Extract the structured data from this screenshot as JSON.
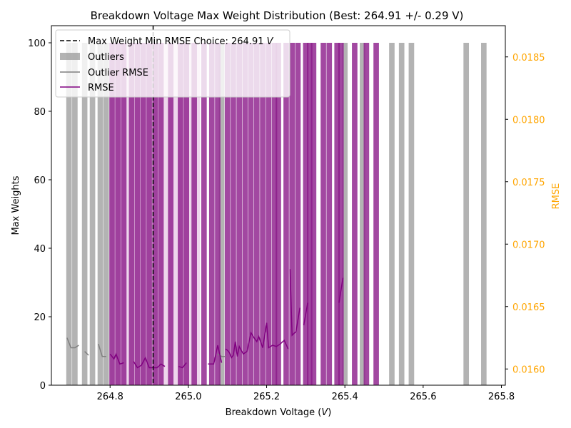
{
  "chart_data": {
    "type": "bar",
    "title": "Breakdown Voltage Max Weight Distribution (Best: 264.91 +/- 0.29 V)",
    "xlabel": "Breakdown Voltage (",
    "xlabel_unit": "V",
    "xlabel_close": ")",
    "ylabel": "Max Weights",
    "ylabel_right": "RMSE",
    "xlim": [
      264.65,
      265.81
    ],
    "ylim": [
      0,
      105
    ],
    "ylim_right": [
      0.01587,
      0.01875
    ],
    "x_ticks": [
      264.8,
      265.0,
      265.2,
      265.4,
      265.6,
      265.8
    ],
    "x_tick_labels": [
      "264.8",
      "265.0",
      "265.2",
      "265.4",
      "265.6",
      "265.8"
    ],
    "y_ticks": [
      0,
      20,
      40,
      60,
      80,
      100
    ],
    "y_tick_labels": [
      "0",
      "20",
      "40",
      "60",
      "80",
      "100"
    ],
    "y_ticks_right": [
      0.016,
      0.0165,
      0.017,
      0.0175,
      0.018,
      0.0185
    ],
    "y_tick_labels_right": [
      "0.0160",
      "0.0165",
      "0.0170",
      "0.0175",
      "0.0180",
      "0.0185"
    ],
    "colors": {
      "outlier_bar": "#999999",
      "rmse_bar": "#8b1a89",
      "outlier_line": "#7f7f7f",
      "rmse_line": "#800080",
      "best_line": "#000000",
      "best_span": "#e8c8e6",
      "right_axis": "#ffa500"
    },
    "best_choice": {
      "x": 264.91,
      "span": [
        264.8,
        265.03
      ],
      "label_prefix": "Max Weight Min RMSE Choice: 264.91 ",
      "label_unit": "V"
    },
    "legend": {
      "position": "upper-left",
      "entries": [
        "Max Weight Min RMSE Choice: 264.91 V",
        "Outliers",
        "Outlier RMSE",
        "RMSE"
      ]
    },
    "bar_width": 0.014,
    "outlier_bars": [
      {
        "x": 264.695,
        "value": 100
      },
      {
        "x": 264.71,
        "value": 100
      },
      {
        "x": 264.735,
        "value": 100
      },
      {
        "x": 264.755,
        "value": 100
      },
      {
        "x": 264.775,
        "value": 100
      },
      {
        "x": 264.79,
        "value": 100
      },
      {
        "x": 265.085,
        "value": 100
      },
      {
        "x": 265.4,
        "value": 100
      },
      {
        "x": 265.445,
        "value": 100
      },
      {
        "x": 265.52,
        "value": 100
      },
      {
        "x": 265.545,
        "value": 100
      },
      {
        "x": 265.57,
        "value": 100
      },
      {
        "x": 265.71,
        "value": 100
      },
      {
        "x": 265.755,
        "value": 100
      }
    ],
    "rmse_bars": [
      {
        "x": 264.805,
        "value": 100
      },
      {
        "x": 264.82,
        "value": 100
      },
      {
        "x": 264.835,
        "value": 100
      },
      {
        "x": 264.855,
        "value": 100
      },
      {
        "x": 264.87,
        "value": 100
      },
      {
        "x": 264.885,
        "value": 100
      },
      {
        "x": 264.9,
        "value": 100
      },
      {
        "x": 264.915,
        "value": 100
      },
      {
        "x": 264.93,
        "value": 100
      },
      {
        "x": 264.955,
        "value": 100
      },
      {
        "x": 264.98,
        "value": 100
      },
      {
        "x": 264.995,
        "value": 100
      },
      {
        "x": 265.015,
        "value": 100
      },
      {
        "x": 265.04,
        "value": 100
      },
      {
        "x": 265.06,
        "value": 100
      },
      {
        "x": 265.075,
        "value": 100
      },
      {
        "x": 265.1,
        "value": 100
      },
      {
        "x": 265.115,
        "value": 100
      },
      {
        "x": 265.13,
        "value": 100
      },
      {
        "x": 265.145,
        "value": 100
      },
      {
        "x": 265.16,
        "value": 100
      },
      {
        "x": 265.175,
        "value": 100
      },
      {
        "x": 265.19,
        "value": 100
      },
      {
        "x": 265.205,
        "value": 100
      },
      {
        "x": 265.22,
        "value": 100
      },
      {
        "x": 265.23,
        "value": 100
      },
      {
        "x": 265.25,
        "value": 100
      },
      {
        "x": 265.265,
        "value": 100
      },
      {
        "x": 265.28,
        "value": 100
      },
      {
        "x": 265.3,
        "value": 100
      },
      {
        "x": 265.31,
        "value": 100
      },
      {
        "x": 265.32,
        "value": 100
      },
      {
        "x": 265.345,
        "value": 100
      },
      {
        "x": 265.36,
        "value": 100
      },
      {
        "x": 265.38,
        "value": 100
      },
      {
        "x": 265.39,
        "value": 100
      },
      {
        "x": 265.425,
        "value": 100
      },
      {
        "x": 265.455,
        "value": 100
      },
      {
        "x": 265.48,
        "value": 100
      }
    ],
    "outlier_rmse_segments": [
      [
        [
          264.69,
          0.01625
        ],
        [
          264.7,
          0.01617
        ],
        [
          264.71,
          0.01617
        ],
        [
          264.72,
          0.01619
        ]
      ],
      [
        [
          264.735,
          0.01614
        ],
        [
          264.745,
          0.01611
        ]
      ],
      [
        [
          264.77,
          0.0162
        ],
        [
          264.78,
          0.0161
        ],
        [
          264.79,
          0.0161
        ]
      ],
      [
        [
          265.075,
          0.01612
        ],
        [
          265.085,
          0.0161
        ],
        [
          265.095,
          0.0161
        ]
      ]
    ],
    "rmse_segments": [
      [
        [
          264.8,
          0.01612
        ],
        [
          264.81,
          0.01608
        ],
        [
          264.815,
          0.01612
        ],
        [
          264.825,
          0.01604
        ],
        [
          264.835,
          0.01605
        ]
      ],
      [
        [
          264.86,
          0.01606
        ],
        [
          264.87,
          0.01601
        ],
        [
          264.88,
          0.01603
        ],
        [
          264.89,
          0.01609
        ],
        [
          264.9,
          0.01601
        ],
        [
          264.91,
          0.01601
        ],
        [
          264.92,
          0.01601
        ],
        [
          264.93,
          0.01604
        ],
        [
          264.94,
          0.01602
        ]
      ],
      [
        [
          264.975,
          0.01602
        ],
        [
          264.985,
          0.01601
        ],
        [
          264.995,
          0.01605
        ]
      ],
      [
        [
          265.05,
          0.01604
        ],
        [
          265.065,
          0.01604
        ],
        [
          265.075,
          0.01619
        ],
        [
          265.085,
          0.01605
        ]
      ],
      [
        [
          265.095,
          0.01616
        ],
        [
          265.1,
          0.01615
        ],
        [
          265.105,
          0.01613
        ],
        [
          265.11,
          0.01609
        ],
        [
          265.115,
          0.01611
        ],
        [
          265.12,
          0.01622
        ],
        [
          265.125,
          0.0161
        ],
        [
          265.13,
          0.01618
        ],
        [
          265.14,
          0.01612
        ],
        [
          265.15,
          0.01614
        ],
        [
          265.16,
          0.01629
        ],
        [
          265.17,
          0.01624
        ],
        [
          265.175,
          0.01622
        ],
        [
          265.18,
          0.01626
        ],
        [
          265.19,
          0.01617
        ],
        [
          265.2,
          0.01637
        ],
        [
          265.205,
          0.01617
        ],
        [
          265.215,
          0.01619
        ],
        [
          265.225,
          0.01618
        ],
        [
          265.235,
          0.0162
        ],
        [
          265.245,
          0.01623
        ],
        [
          265.255,
          0.01616
        ]
      ],
      [
        [
          265.26,
          0.0168
        ],
        [
          265.265,
          0.01627
        ],
        [
          265.275,
          0.0163
        ],
        [
          265.285,
          0.01649
        ]
      ],
      [
        [
          265.295,
          0.01635
        ],
        [
          265.305,
          0.01653
        ]
      ],
      [
        [
          265.385,
          0.01653
        ],
        [
          265.39,
          0.01663
        ],
        [
          265.395,
          0.01673
        ]
      ]
    ]
  }
}
